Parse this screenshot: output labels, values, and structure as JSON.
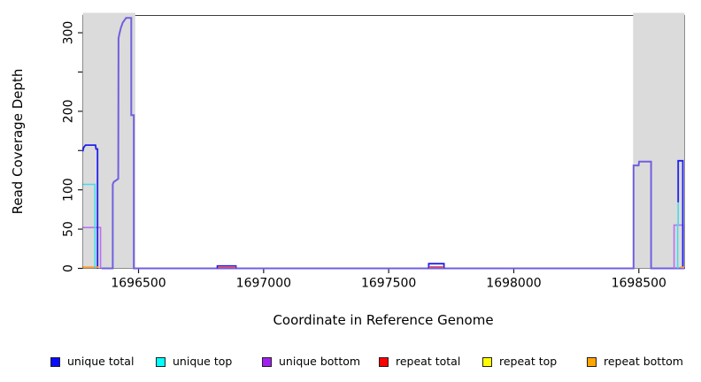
{
  "chart_data": {
    "type": "line",
    "title": "",
    "xlabel": "Coordinate in Reference Genome",
    "ylabel": "Read Coverage Depth",
    "xlim": [
      1696277,
      1698683
    ],
    "ylim": [
      0,
      322
    ],
    "x_ticks": [
      1696500,
      1697000,
      1697500,
      1698000,
      1698500
    ],
    "y_ticks": [
      0,
      50,
      100,
      150,
      200,
      250,
      300
    ],
    "y_ticks_labeled": [
      0,
      50,
      100,
      200,
      300
    ],
    "grid": false,
    "shaded_regions": [
      {
        "name": "left-gray-band",
        "x0": 1696277,
        "x1": 1696487
      },
      {
        "name": "right-gray-band",
        "x0": 1698477,
        "x1": 1698683
      }
    ],
    "shade_color": "#DBDBDB",
    "frame_color": "#3c3c3c",
    "tick_color": "#1a1a1a",
    "series": [
      {
        "name": "unique total + unique bottom (coincident)",
        "color": "#7060DF",
        "width": 2,
        "segments": [
          [
            [
              1696352,
              0
            ],
            [
              1696397,
              0
            ],
            [
              1696397,
              107
            ],
            [
              1696401,
              110
            ],
            [
              1696419,
              114
            ],
            [
              1696420,
              293
            ],
            [
              1696424,
              299
            ],
            [
              1696429,
              306
            ],
            [
              1696437,
              313
            ],
            [
              1696446,
              317
            ],
            [
              1696450,
              319
            ],
            [
              1696471,
              319
            ],
            [
              1696471,
              195
            ],
            [
              1696481,
              195
            ],
            [
              1696481,
              0
            ],
            [
              1698479,
              0
            ],
            [
              1698479,
              131
            ],
            [
              1698499,
              131
            ],
            [
              1698501,
              136
            ],
            [
              1698549,
              136
            ],
            [
              1698549,
              0
            ],
            [
              1698683,
              0
            ]
          ]
        ]
      },
      {
        "name": "unique bottom",
        "color": "#BA6FEF",
        "width": 1.6,
        "segments": [
          [
            [
              1696277,
              52
            ],
            [
              1696348,
              52
            ],
            [
              1696348,
              0
            ]
          ],
          [
            [
              1698641,
              0
            ],
            [
              1698641,
              55
            ],
            [
              1698677,
              55
            ],
            [
              1698677,
              0
            ]
          ]
        ]
      },
      {
        "name": "unique total",
        "color": "#2020EE",
        "width": 1.8,
        "segments": [
          [
            [
              1696277,
              149
            ],
            [
              1696281,
              154
            ],
            [
              1696288,
              157
            ],
            [
              1696328,
              157
            ],
            [
              1696330,
              152
            ],
            [
              1696336,
              152
            ],
            [
              1696336,
              0
            ]
          ],
          [
            [
              1696815,
              0
            ],
            [
              1696815,
              3
            ],
            [
              1696889,
              3
            ],
            [
              1696889,
              0
            ]
          ],
          [
            [
              1697660,
              0
            ],
            [
              1697660,
              6
            ],
            [
              1697721,
              6
            ],
            [
              1697721,
              0
            ]
          ],
          [
            [
              1698657,
              84
            ],
            [
              1698657,
              137
            ],
            [
              1698676,
              137
            ],
            [
              1698676,
              2
            ]
          ]
        ]
      },
      {
        "name": "repeat total",
        "color": "#EA5060",
        "width": 1.5,
        "segments": [
          [
            [
              1696820,
              0
            ],
            [
              1696820,
              2
            ],
            [
              1696886,
              2
            ],
            [
              1696886,
              0
            ]
          ],
          [
            [
              1697664,
              0
            ],
            [
              1697664,
              2
            ],
            [
              1697717,
              2
            ],
            [
              1697717,
              0
            ]
          ]
        ]
      },
      {
        "name": "repeat bottom",
        "color": "#FF9E2C",
        "width": 1.8,
        "segments": [
          [
            [
              1696277,
              1.5
            ],
            [
              1696340,
              1.5
            ]
          ],
          [
            [
              1698666,
              1.5
            ],
            [
              1698681,
              1.5
            ]
          ]
        ]
      },
      {
        "name": "unique top",
        "color": "#45DCE8",
        "width": 1.6,
        "segments": [
          [
            [
              1696277,
              107
            ],
            [
              1696326,
              107
            ],
            [
              1696326,
              0
            ]
          ],
          [
            [
              1698655,
              0
            ],
            [
              1698655,
              55
            ],
            [
              1698657,
              55
            ],
            [
              1698657,
              84
            ]
          ]
        ]
      }
    ],
    "legend": {
      "position": "bottom",
      "items": [
        {
          "label": "unique total",
          "color": "#0A0AFF"
        },
        {
          "label": "unique top",
          "color": "#00FFFF"
        },
        {
          "label": "unique bottom",
          "color": "#A020F0"
        },
        {
          "label": "repeat total",
          "color": "#FF0000"
        },
        {
          "label": "repeat top",
          "color": "#FFFF00"
        },
        {
          "label": "repeat bottom",
          "color": "#FFA500"
        }
      ]
    }
  }
}
